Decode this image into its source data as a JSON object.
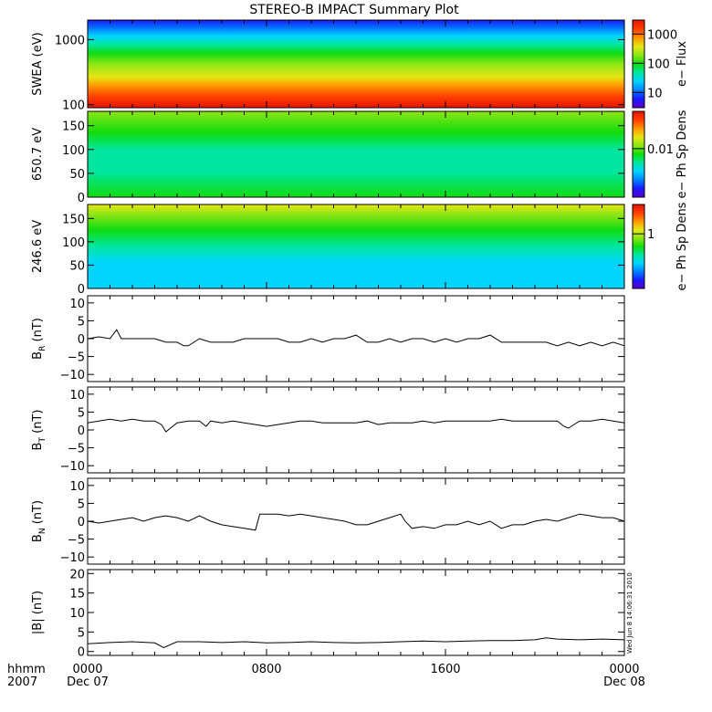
{
  "title": "STEREO-B IMPACT Summary Plot",
  "stamp": "Wed Jun  8 14:06:31 2010",
  "time_axis": {
    "row1_label": "hhmm",
    "row2_label": "2007",
    "ticks": [
      {
        "hour": 0,
        "label": "0000",
        "sublabel": "Dec 07"
      },
      {
        "hour": 8,
        "label": "0800",
        "sublabel": ""
      },
      {
        "hour": 16,
        "label": "1600",
        "sublabel": ""
      },
      {
        "hour": 24,
        "label": "0000",
        "sublabel": "Dec 08"
      }
    ]
  },
  "colormap": [
    "#5a00c8",
    "#1a1aff",
    "#0080ff",
    "#00d4ff",
    "#00e6a0",
    "#10dc10",
    "#8ce614",
    "#e6e614",
    "#ff9600",
    "#ff3c00",
    "#e61400"
  ],
  "chart_data": [
    {
      "type": "heatmap",
      "ylabel": "SWEA (eV)",
      "yscale": "log",
      "ylim": [
        90,
        2000
      ],
      "yticks": [
        {
          "value": 100,
          "label": "100"
        },
        {
          "value": 1000,
          "label": "1000"
        }
      ],
      "colorbar_label": "e− Flux",
      "colorbar_ticks": [
        {
          "value": 10,
          "label": "10"
        },
        {
          "value": 100,
          "label": "100"
        },
        {
          "value": 1000,
          "label": "1000"
        }
      ],
      "colorbar_range": [
        3,
        3000
      ],
      "colorbar_scale": "log"
    },
    {
      "type": "heatmap",
      "ylabel": "650.7 eV",
      "yscale": "linear",
      "ylim": [
        0,
        180
      ],
      "yticks": [
        {
          "value": 0,
          "label": "0"
        },
        {
          "value": 50,
          "label": "50"
        },
        {
          "value": 100,
          "label": "100"
        },
        {
          "value": 150,
          "label": "150"
        }
      ],
      "colorbar_label": "e− Ph Sp Dens",
      "colorbar_ticks": [
        {
          "value": 0.01,
          "label": "0.01"
        }
      ],
      "colorbar_range": [
        0.0005,
        0.1
      ],
      "colorbar_scale": "log"
    },
    {
      "type": "heatmap",
      "ylabel": "246.6 eV",
      "yscale": "linear",
      "ylim": [
        0,
        180
      ],
      "yticks": [
        {
          "value": 0,
          "label": "0"
        },
        {
          "value": 50,
          "label": "50"
        },
        {
          "value": 100,
          "label": "100"
        },
        {
          "value": 150,
          "label": "150"
        }
      ],
      "colorbar_label": "e− Ph Sp Dens",
      "colorbar_ticks": [
        {
          "value": 1,
          "label": "1"
        }
      ],
      "colorbar_range": [
        0.05,
        5
      ],
      "colorbar_scale": "log"
    },
    {
      "type": "line",
      "ylabel": "B",
      "ylabel_sub": "R",
      "ylabel_unit": "(nT)",
      "ylim": [
        -12,
        12
      ],
      "yticks": [
        {
          "value": -10,
          "label": "−10"
        },
        {
          "value": -5,
          "label": "−5"
        },
        {
          "value": 0,
          "label": "0"
        },
        {
          "value": 5,
          "label": "5"
        },
        {
          "value": 10,
          "label": "10"
        }
      ],
      "x": [
        0,
        0.5,
        1,
        1.3,
        1.5,
        2,
        2.5,
        3,
        3.5,
        4,
        4.3,
        4.5,
        5,
        5.5,
        6,
        6.5,
        7,
        7.5,
        8,
        8.5,
        9,
        9.5,
        10,
        10.5,
        11,
        11.5,
        12,
        12.5,
        13,
        13.5,
        14,
        14.5,
        15,
        15.5,
        16,
        16.5,
        17,
        17.5,
        18,
        18.5,
        19,
        19.5,
        20,
        20.5,
        21,
        21.5,
        22,
        22.5,
        23,
        23.5,
        24
      ],
      "y": [
        0,
        0.5,
        0,
        2.5,
        0,
        0,
        0,
        0,
        -1,
        -1,
        -2,
        -2,
        0,
        -1,
        -1,
        -1,
        0,
        0,
        0,
        0,
        -1,
        -1,
        0,
        -1,
        0,
        0,
        1,
        -1,
        -1,
        0,
        -1,
        0,
        0,
        -1,
        0,
        -1,
        0,
        0,
        1,
        -1,
        -1,
        -1,
        -1,
        -1,
        -2,
        -1,
        -2,
        -1,
        -2,
        -1,
        -2
      ]
    },
    {
      "type": "line",
      "ylabel": "B",
      "ylabel_sub": "T",
      "ylabel_unit": "(nT)",
      "ylim": [
        -12,
        12
      ],
      "yticks": [
        {
          "value": -10,
          "label": "−10"
        },
        {
          "value": -5,
          "label": "−5"
        },
        {
          "value": 0,
          "label": "0"
        },
        {
          "value": 5,
          "label": "5"
        },
        {
          "value": 10,
          "label": "10"
        }
      ],
      "x": [
        0,
        0.5,
        1,
        1.5,
        2,
        2.5,
        3,
        3.3,
        3.5,
        4,
        4.5,
        5,
        5.3,
        5.5,
        6,
        6.5,
        7,
        7.5,
        8,
        8.5,
        9,
        9.5,
        10,
        10.5,
        11,
        11.5,
        12,
        12.5,
        13,
        13.5,
        14,
        14.5,
        15,
        15.5,
        16,
        16.5,
        17,
        17.5,
        18,
        18.5,
        19,
        19.5,
        20,
        20.5,
        21,
        21.3,
        21.5,
        22,
        22.5,
        23,
        23.5,
        24
      ],
      "y": [
        2,
        2.5,
        3,
        2.5,
        3,
        2.5,
        2.5,
        1.5,
        -0.5,
        2,
        2.5,
        2.5,
        1,
        2.5,
        2,
        2.5,
        2,
        1.5,
        1,
        1.5,
        2,
        2.5,
        2.5,
        2,
        2,
        2,
        2,
        2.5,
        1.5,
        2,
        2,
        2,
        2.5,
        2,
        2.5,
        2.5,
        2.5,
        2.5,
        2.5,
        3,
        2.5,
        2.5,
        2.5,
        2.5,
        2.5,
        1,
        0.5,
        2.5,
        2.5,
        3,
        2.5,
        2
      ]
    },
    {
      "type": "line",
      "ylabel": "B",
      "ylabel_sub": "N",
      "ylabel_unit": "(nT)",
      "ylim": [
        -12,
        12
      ],
      "yticks": [
        {
          "value": -10,
          "label": "−10"
        },
        {
          "value": -5,
          "label": "−5"
        },
        {
          "value": 0,
          "label": "0"
        },
        {
          "value": 5,
          "label": "5"
        },
        {
          "value": 10,
          "label": "10"
        }
      ],
      "x": [
        0,
        0.5,
        1,
        1.5,
        2,
        2.5,
        3,
        3.5,
        4,
        4.5,
        5,
        5.5,
        6,
        6.5,
        7,
        7.5,
        7.7,
        8,
        8.5,
        9,
        9.5,
        10,
        10.5,
        11,
        11.5,
        12,
        12.5,
        13,
        13.5,
        14,
        14.2,
        14.5,
        15,
        15.5,
        16,
        16.5,
        17,
        17.5,
        18,
        18.5,
        19,
        19.5,
        20,
        20.5,
        21,
        21.5,
        22,
        22.5,
        23,
        23.5,
        24
      ],
      "y": [
        0,
        -0.5,
        0,
        0.5,
        1,
        0,
        1,
        1.5,
        1,
        0,
        1.5,
        0,
        -1,
        -1.5,
        -2,
        -2.5,
        2,
        2,
        2,
        1.5,
        2,
        1.5,
        1,
        0.5,
        0,
        -1,
        -1,
        0,
        1,
        2,
        0,
        -2,
        -1.5,
        -2,
        -1,
        -1,
        0,
        -1,
        0,
        -2,
        -1,
        -1,
        0,
        0.5,
        0,
        1,
        2,
        1.5,
        1,
        1,
        0
      ]
    },
    {
      "type": "line",
      "ylabel": "|B|",
      "ylabel_sub": "",
      "ylabel_unit": "(nT)",
      "ylim": [
        -1,
        21
      ],
      "yticks": [
        {
          "value": 0,
          "label": "0"
        },
        {
          "value": 5,
          "label": "5"
        },
        {
          "value": 10,
          "label": "10"
        },
        {
          "value": 15,
          "label": "15"
        },
        {
          "value": 20,
          "label": "20"
        }
      ],
      "x": [
        0,
        1,
        2,
        3,
        3.4,
        4,
        5,
        6,
        7,
        8,
        9,
        10,
        11,
        12,
        13,
        14,
        15,
        16,
        17,
        18,
        19,
        20,
        20.5,
        21,
        22,
        23,
        24
      ],
      "y": [
        2,
        2.3,
        2.5,
        2.2,
        1,
        2.5,
        2.5,
        2.3,
        2.5,
        2.2,
        2.3,
        2.5,
        2.3,
        2.2,
        2.3,
        2.5,
        2.7,
        2.5,
        2.7,
        2.8,
        2.8,
        3,
        3.5,
        3.2,
        3,
        3.2,
        3
      ]
    }
  ]
}
